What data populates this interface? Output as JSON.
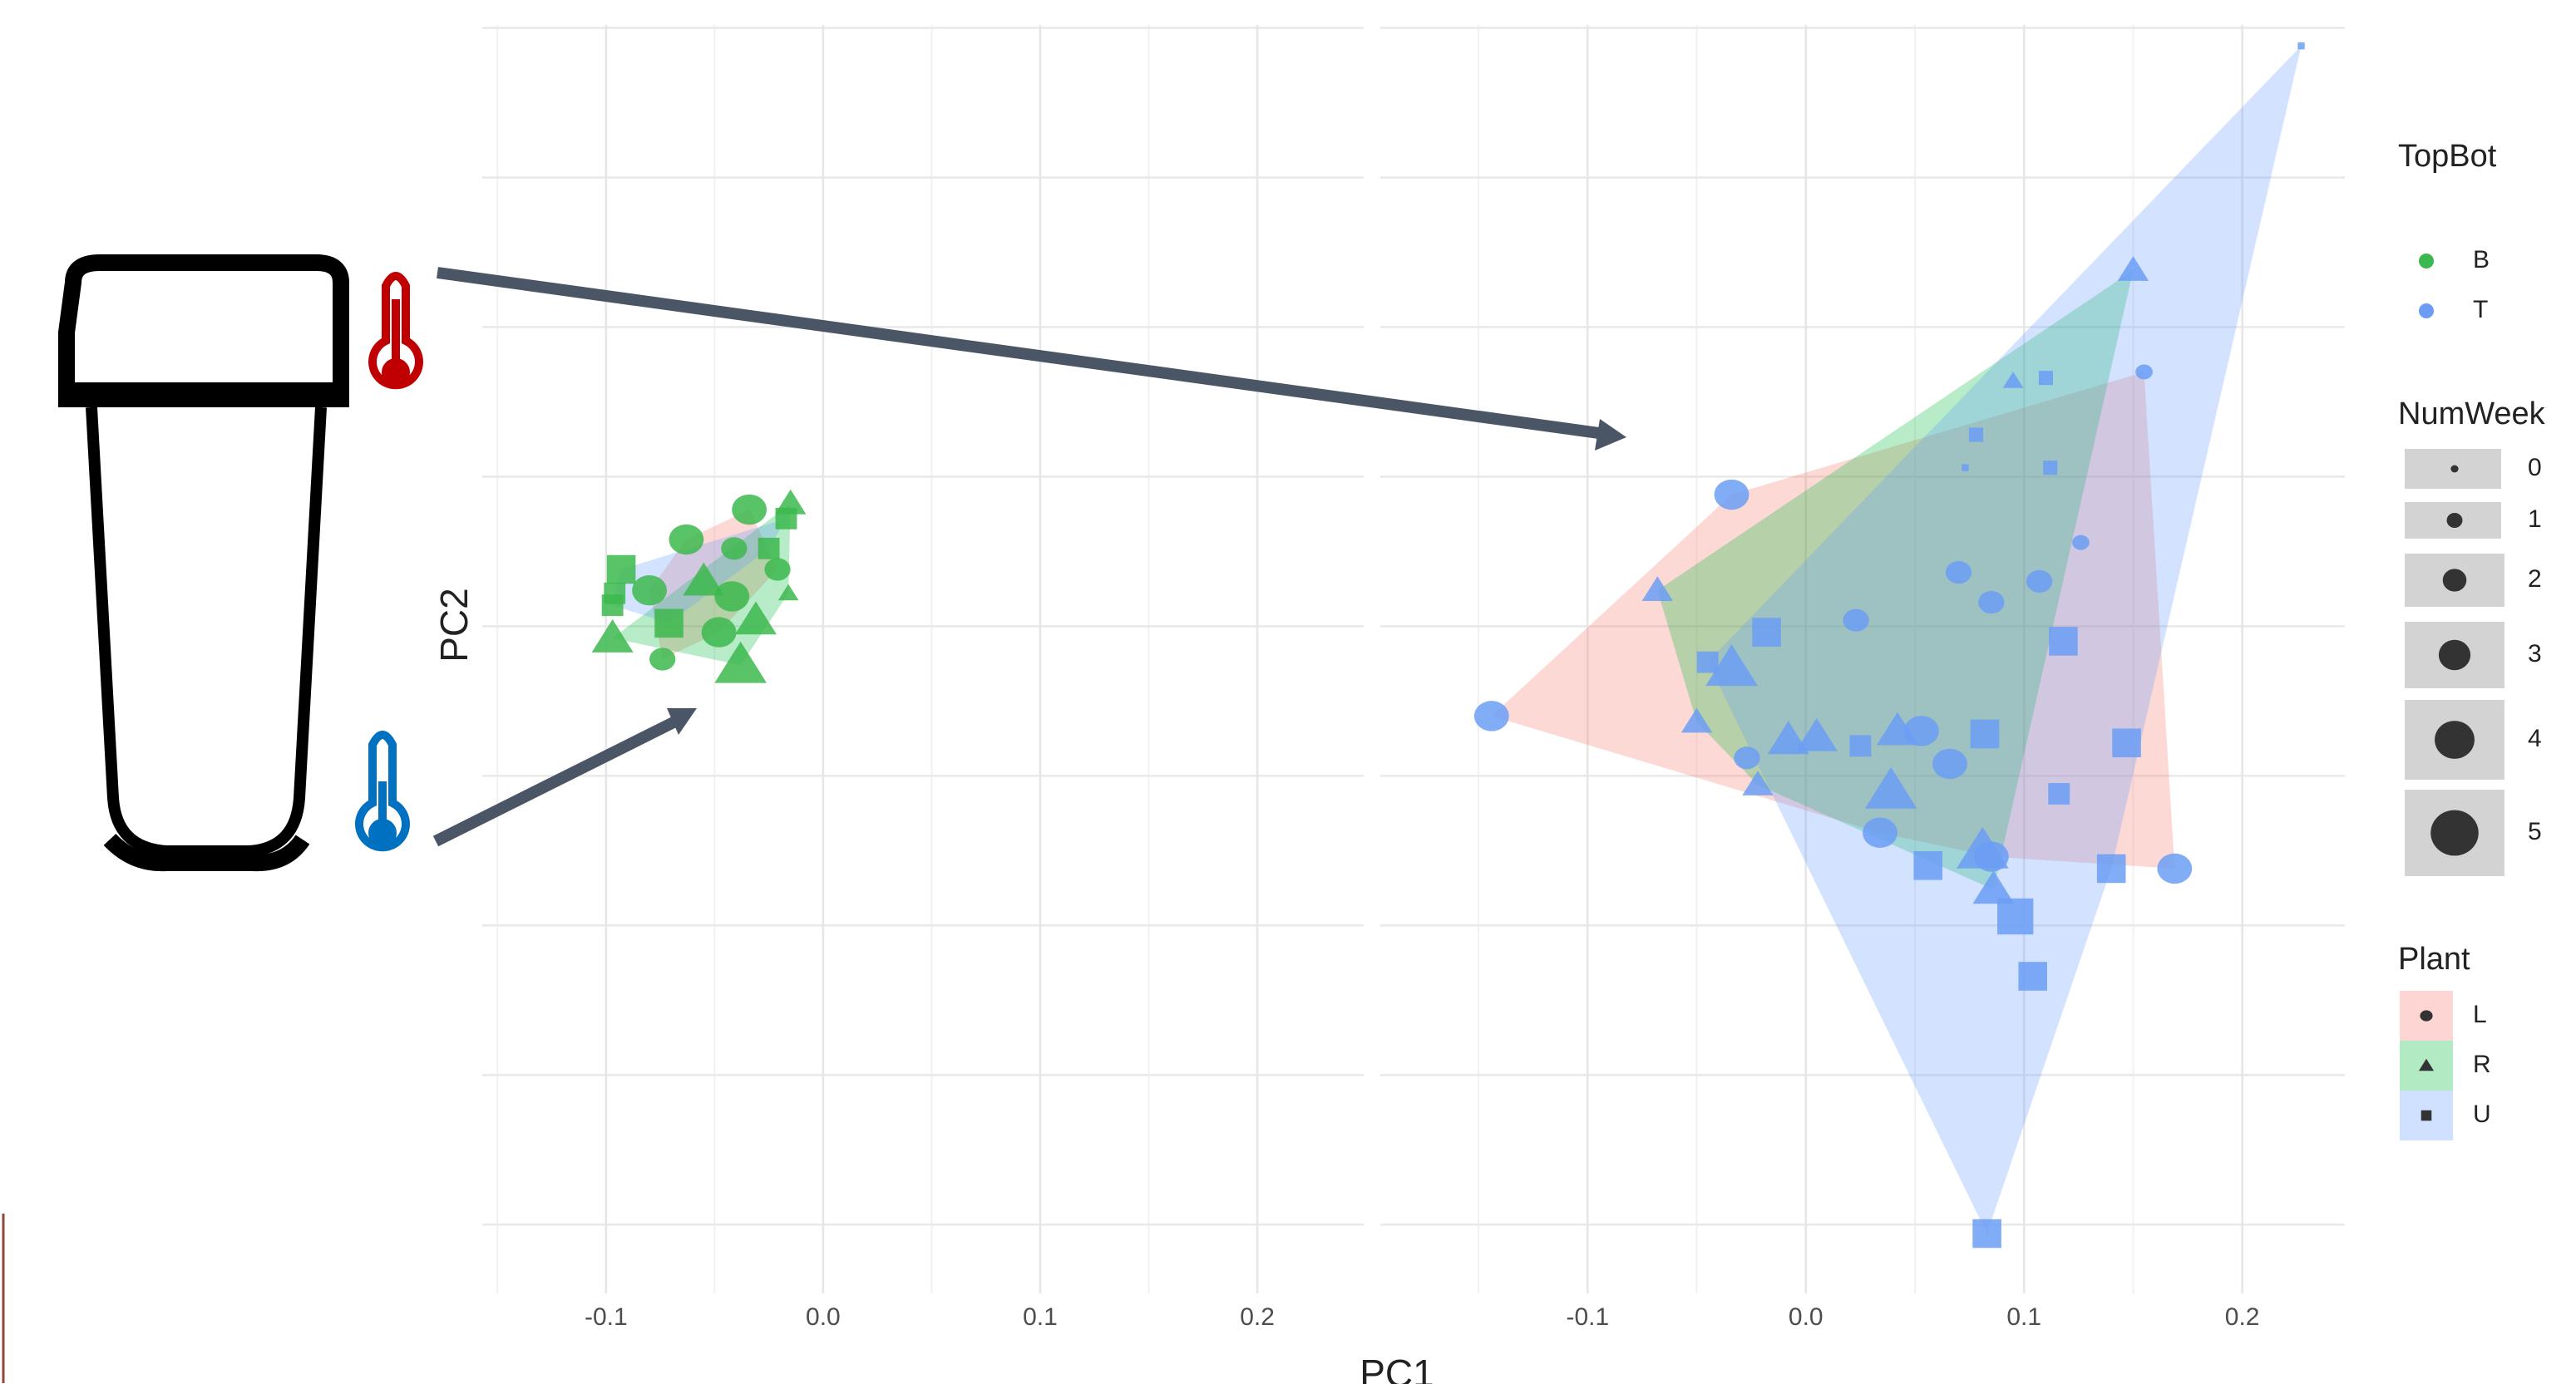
{
  "chart_data": [
    {
      "type": "scatter",
      "x_label": "PC1",
      "y_label": "PC2",
      "xlim": [
        -0.157,
        0.249
      ],
      "ylim": [
        -0.223,
        0.201
      ],
      "xticks": [
        -0.1,
        {
          "value": 0,
          "label": "0.0"
        },
        0.1,
        0.2
      ],
      "xminor": [
        -0.15,
        -0.05,
        0.05,
        0.15
      ],
      "yticks": [
        0.2,
        0.15,
        0.1,
        0.05,
        0,
        -0.05,
        -0.1,
        -0.15,
        -0.2
      ],
      "grid": true,
      "points": {
        "x": [
          -0.093,
          -0.096,
          -0.097,
          -0.097,
          -0.074,
          -0.071,
          -0.063,
          -0.034,
          -0.015,
          -0.017,
          -0.041,
          -0.021,
          -0.016,
          -0.042,
          -0.048,
          -0.031,
          -0.038,
          -0.055,
          -0.08,
          -0.025
        ],
        "y": [
          0.019,
          0.011,
          0.007,
          -0.004,
          -0.011,
          0.001,
          0.029,
          0.039,
          0.041,
          0.036,
          0.026,
          0.019,
          0.011,
          0.01,
          -0.002,
          0.002,
          -0.013,
          0.015,
          0.012,
          0.026
        ],
        "size": [
          3,
          2,
          2,
          3,
          2,
          3,
          3,
          3,
          2,
          2,
          2,
          2,
          1,
          3,
          3,
          3,
          4,
          3,
          3,
          2
        ],
        "shape": [
          "U",
          "U",
          "U",
          "R",
          "L",
          "U",
          "L",
          "L",
          "R",
          "U",
          "L",
          "L",
          "R",
          "L",
          "L",
          "R",
          "R",
          "R",
          "L",
          "U"
        ],
        "group": [
          "B",
          "B",
          "B",
          "B",
          "B",
          "B",
          "B",
          "B",
          "B",
          "B",
          "B",
          "B",
          "B",
          "B",
          "B",
          "B",
          "B",
          "B",
          "B",
          "B"
        ]
      }
    },
    {
      "type": "scatter",
      "xlim": [
        -0.195,
        0.247
      ],
      "ylim": [
        -0.223,
        0.201
      ],
      "xticks": [
        -0.1,
        {
          "value": 0,
          "label": "0.0"
        },
        0.1,
        0.2
      ],
      "xminor": [
        -0.15,
        -0.05,
        0.05,
        0.15
      ],
      "yticks": [
        0.2,
        0.15,
        0.1,
        0.05,
        0,
        -0.05,
        -0.1,
        -0.15,
        -0.2
      ],
      "grid": true,
      "points": {
        "x": [
          0.227,
          0.15,
          0.155,
          0.095,
          0.11,
          0.078,
          0.073,
          0.112,
          -0.034,
          0.126,
          -0.068,
          0.07,
          0.107,
          0.085,
          0.023,
          -0.018,
          0.118,
          -0.045,
          -0.034,
          -0.144,
          -0.05,
          -0.008,
          0.005,
          0.025,
          0.042,
          0.053,
          0.082,
          0.147,
          -0.027,
          0.066,
          -0.022,
          0.039,
          0.116,
          0.034,
          0.081,
          0.085,
          0.056,
          0.14,
          0.169,
          0.086,
          0.096,
          0.104,
          0.083
        ],
        "y": [
          0.194,
          0.119,
          0.085,
          0.082,
          0.083,
          0.064,
          0.053,
          0.053,
          0.044,
          0.028,
          0.012,
          0.018,
          0.015,
          0.008,
          0.002,
          -0.002,
          -0.005,
          -0.012,
          -0.014,
          -0.03,
          -0.032,
          -0.038,
          -0.037,
          -0.04,
          -0.035,
          -0.035,
          -0.036,
          -0.039,
          -0.044,
          -0.046,
          -0.053,
          -0.055,
          -0.056,
          -0.069,
          -0.075,
          -0.077,
          -0.08,
          -0.081,
          -0.081,
          -0.088,
          -0.097,
          -0.117,
          -0.203
        ],
        "size": [
          0,
          2,
          1,
          1,
          1,
          1,
          0,
          1,
          3,
          1,
          2,
          2,
          2,
          2,
          2,
          3,
          3,
          2,
          4,
          3,
          2,
          3,
          3,
          2,
          3,
          3,
          3,
          3,
          2,
          3,
          2,
          4,
          2,
          3,
          4,
          3,
          3,
          3,
          3,
          3,
          4,
          3,
          3
        ],
        "shape": [
          "U",
          "R",
          "L",
          "R",
          "U",
          "U",
          "U",
          "U",
          "L",
          "L",
          "R",
          "L",
          "L",
          "L",
          "L",
          "U",
          "U",
          "U",
          "R",
          "L",
          "R",
          "R",
          "R",
          "U",
          "R",
          "L",
          "U",
          "U",
          "L",
          "L",
          "R",
          "R",
          "U",
          "L",
          "R",
          "L",
          "U",
          "U",
          "L",
          "R",
          "U",
          "U",
          "U"
        ],
        "group": [
          "T",
          "T",
          "T",
          "T",
          "T",
          "T",
          "T",
          "T",
          "T",
          "T",
          "T",
          "T",
          "T",
          "T",
          "T",
          "T",
          "T",
          "T",
          "T",
          "T",
          "T",
          "T",
          "T",
          "T",
          "T",
          "T",
          "T",
          "T",
          "T",
          "T",
          "T",
          "T",
          "T",
          "T",
          "T",
          "T",
          "T",
          "T",
          "T",
          "T",
          "T",
          "T",
          "T"
        ]
      },
      "color_legend": {
        "title": "TopBot",
        "names": [
          "B",
          "T"
        ],
        "colors": [
          "#3cb94e",
          "#6b9df5"
        ]
      },
      "size_legend": {
        "title": "NumWeek",
        "values": [
          0,
          1,
          2,
          3,
          4,
          5
        ]
      },
      "shape_legend": {
        "title": "Plant",
        "names": [
          "L",
          "R",
          "U"
        ],
        "shapes": [
          "circle",
          "triangle",
          "square"
        ],
        "colors": [
          "#f8766d",
          "#00ba38",
          "#619cff"
        ]
      }
    }
  ]
}
